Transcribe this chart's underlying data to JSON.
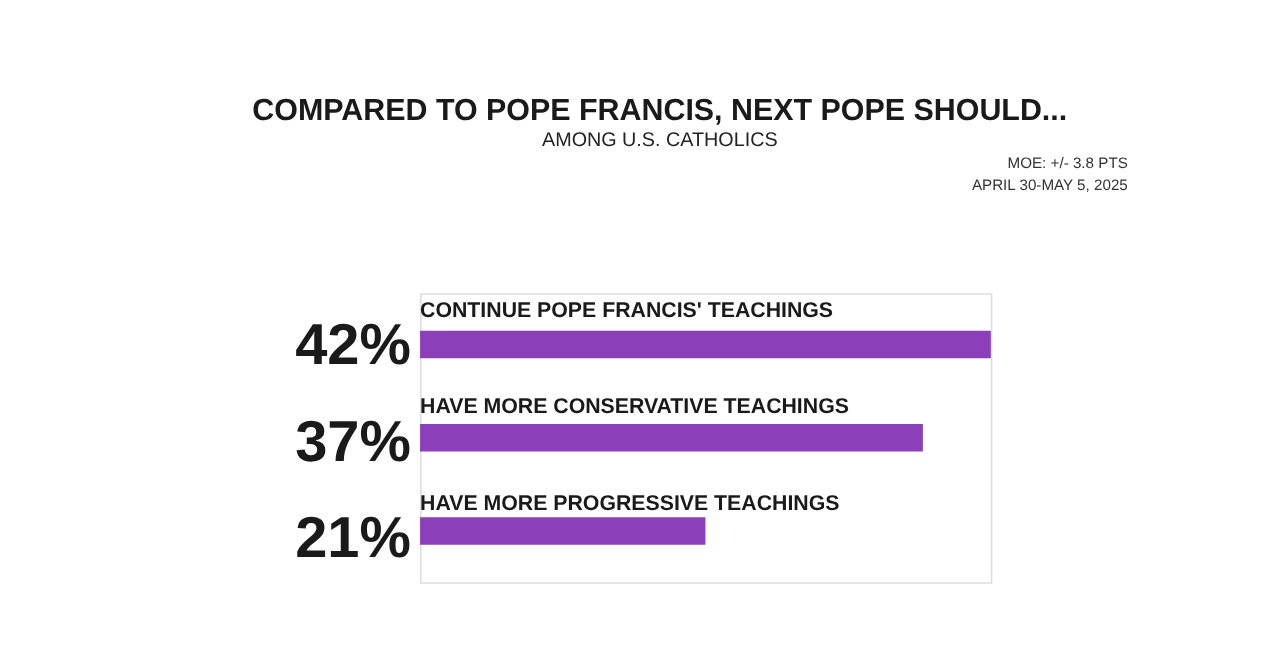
{
  "chart_data": {
    "type": "bar",
    "orientation": "horizontal",
    "title": "COMPARED TO POPE FRANCIS, NEXT POPE SHOULD...",
    "subtitle": "AMONG U.S. CATHOLICS",
    "categories": [
      "CONTINUE POPE FRANCIS' TEACHINGS",
      "HAVE MORE CONSERVATIVE TEACHINGS",
      "HAVE MORE PROGRESSIVE TEACHINGS"
    ],
    "values": [
      42,
      37,
      21
    ],
    "value_labels": [
      "42%",
      "37%",
      "21%"
    ],
    "color": "#8b3fb8",
    "annotations": [
      "MOE: +/- 3.8 PTS",
      "APRIL 30-MAY 5, 2025"
    ]
  }
}
